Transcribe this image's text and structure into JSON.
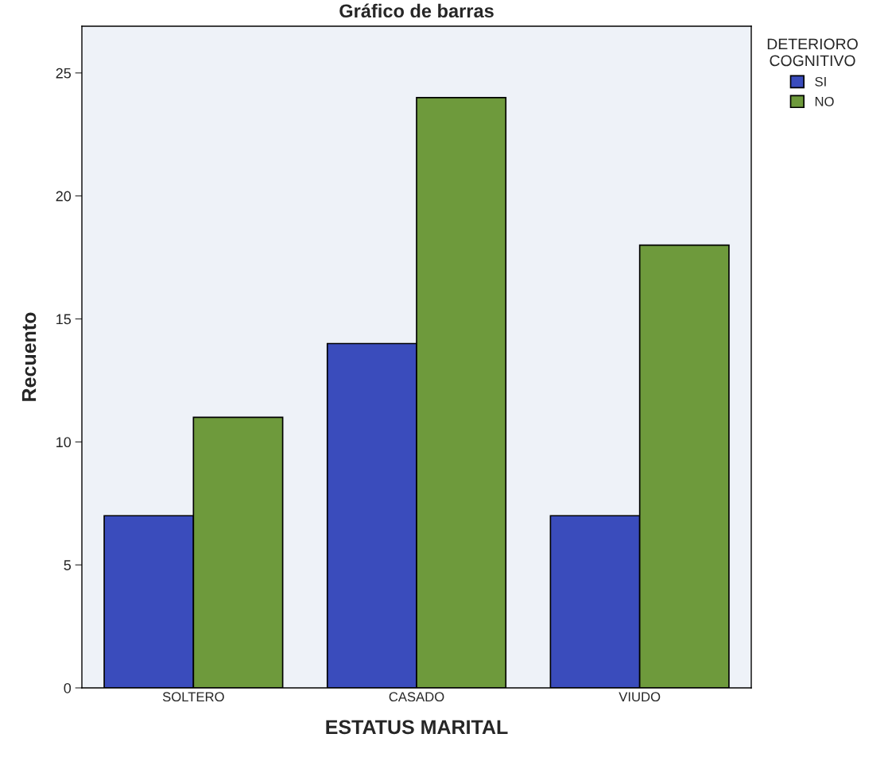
{
  "chart_data": {
    "type": "bar",
    "title": "Gráfico de barras",
    "xlabel": "ESTATUS MARITAL",
    "ylabel": "Recuento",
    "legend_title": "DETERIORO\nCOGNITIVO",
    "categories": [
      "SOLTERO",
      "CASADO",
      "VIUDO"
    ],
    "series": [
      {
        "name": "SI",
        "color": "#3a4cbc",
        "values": [
          7,
          14,
          7
        ]
      },
      {
        "name": "NO",
        "color": "#6e9a3c",
        "values": [
          11,
          24,
          18
        ]
      }
    ],
    "ylim": [
      0,
      26.9
    ],
    "yticks": [
      0,
      5,
      10,
      15,
      20,
      25
    ],
    "grid": false,
    "legend": "top right"
  }
}
